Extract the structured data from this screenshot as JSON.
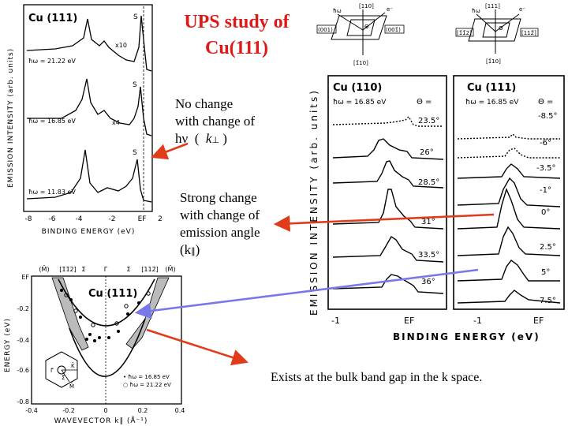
{
  "title": {
    "line1": "UPS study of",
    "line2": "Cu(111)"
  },
  "notes": {
    "no_change": {
      "line1": "No change",
      "line2": "with change of",
      "hv": "hν",
      "k": "k",
      "perp": "⊥"
    },
    "strong_change": {
      "line1": "Strong change",
      "line2": "with change of",
      "line3": "emission angle",
      "k": "(k",
      "par": "∥",
      "close": ")"
    },
    "bulk_gap": "Exists at the bulk band gap in the k space."
  },
  "fig_left": {
    "panel": "Cu (111)",
    "ylabel": "EMISSION INTENSITY (arb. units)",
    "xlabel": "BINDING ENERGY (eV)",
    "ticks": [
      "-8",
      "-6",
      "-4",
      "-2",
      "EF",
      "2"
    ],
    "spectra": [
      {
        "label": "ħω = 21.22 eV",
        "mark": "S",
        "scale": "x10"
      },
      {
        "label": "ħω = 16.85 eV",
        "mark": "S",
        "scale": "x4"
      },
      {
        "label": "ħω = 11.83 eV",
        "mark": "S",
        "scale": ""
      }
    ]
  },
  "fig_right": {
    "ylabel": "EMISSION INTENSITY (arb. units)",
    "xlabel": "BINDING ENERGY (eV)",
    "panel_a": {
      "title": "Cu (110)",
      "energy": "ħω = 16.85 eV",
      "theta_header": "Θ =",
      "angles": [
        "23.5°",
        "26°",
        "28.5°",
        "31°",
        "33.5°",
        "36°"
      ],
      "ticks": [
        "-1",
        "EF"
      ],
      "geometry": {
        "top": "[110]",
        "left": "(001)",
        "right": "(001̄)",
        "bottom": "[1̄10]",
        "hw": "ħω",
        "e": "e⁻",
        "theta": "Θ"
      }
    },
    "panel_b": {
      "title": "Cu (111)",
      "energy": "ħω = 16.85 eV",
      "theta_header": "Θ =",
      "angles": [
        "-8.5°",
        "-6°",
        "-3.5°",
        "-1°",
        "0°",
        "2.5°",
        "5°",
        "7.5°"
      ],
      "ticks": [
        "-1",
        "EF"
      ],
      "geometry": {
        "top": "[111]",
        "left": "[1̄1̄2]",
        "right": "[112̄]",
        "bottom": "[1̄10]",
        "hw": "ħω",
        "e": "e⁻",
        "theta": "Θ"
      }
    }
  },
  "fig_bottom": {
    "panel": "Cu (111)",
    "top_ticks": [
      "(M̄)",
      "[1̄1̄2]",
      "Σ̄",
      "Γ̄",
      "Σ̄",
      "[112̄]",
      "(M̄)"
    ],
    "ylabel": "ENERGY (eV)",
    "xlabel": "WAVEVECTOR k∥ (Å⁻¹)",
    "y_ticks": [
      "EF",
      "-0.2",
      "-0.4",
      "-0.6",
      "-0.8"
    ],
    "x_ticks": [
      "-0.4",
      "-0.2",
      "0",
      "0.2",
      "0.4"
    ],
    "legend": [
      "• ħω = 16.85 eV",
      "○ ħω = 21.22 eV"
    ],
    "bz_labels": {
      "g": "Γ̄",
      "k": "K̄",
      "s": "Σ̄",
      "m": "M̄"
    }
  },
  "colors": {
    "title": "#e01818",
    "red_arrow": "#e03c1c",
    "blue_arrow": "#7878e8"
  }
}
